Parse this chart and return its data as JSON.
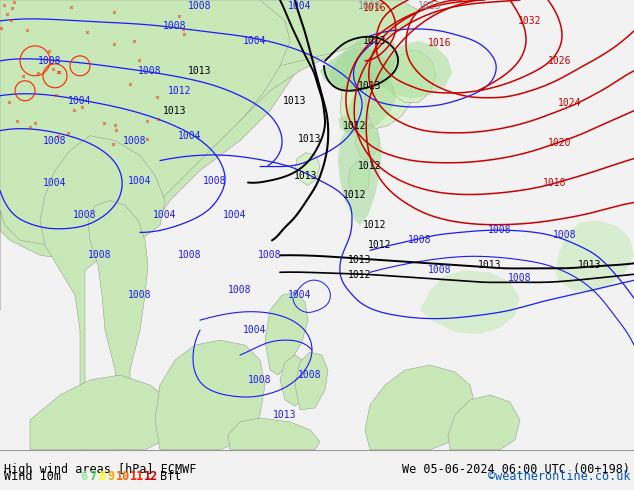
{
  "title_left": "High wind areas [hPa] ECMWF",
  "title_right": "We 05-06-2024 06:00 UTC (00+198)",
  "subtitle_left": "Wind 10m",
  "subtitle_right": "©weatheronline.co.uk",
  "bft_nums": [
    "6",
    "7",
    "8",
    "9",
    "10",
    "11",
    "12"
  ],
  "bft_colors": [
    "#90ee90",
    "#44cc44",
    "#ffff00",
    "#ffa500",
    "#ff6600",
    "#ff2200",
    "#cc0000"
  ],
  "bg_map_color": "#f2f2f2",
  "bottom_bar_color": "#ffffff",
  "text_color": "#000000",
  "font_size_title": 8.5,
  "font_size_sub": 8.5,
  "land_color_main": "#c8e8b8",
  "land_color_light": "#d8f0c8",
  "ocean_color": "#f0f0f0",
  "green_shading": "#b0e0a0",
  "green_shading2": "#c8eebc"
}
